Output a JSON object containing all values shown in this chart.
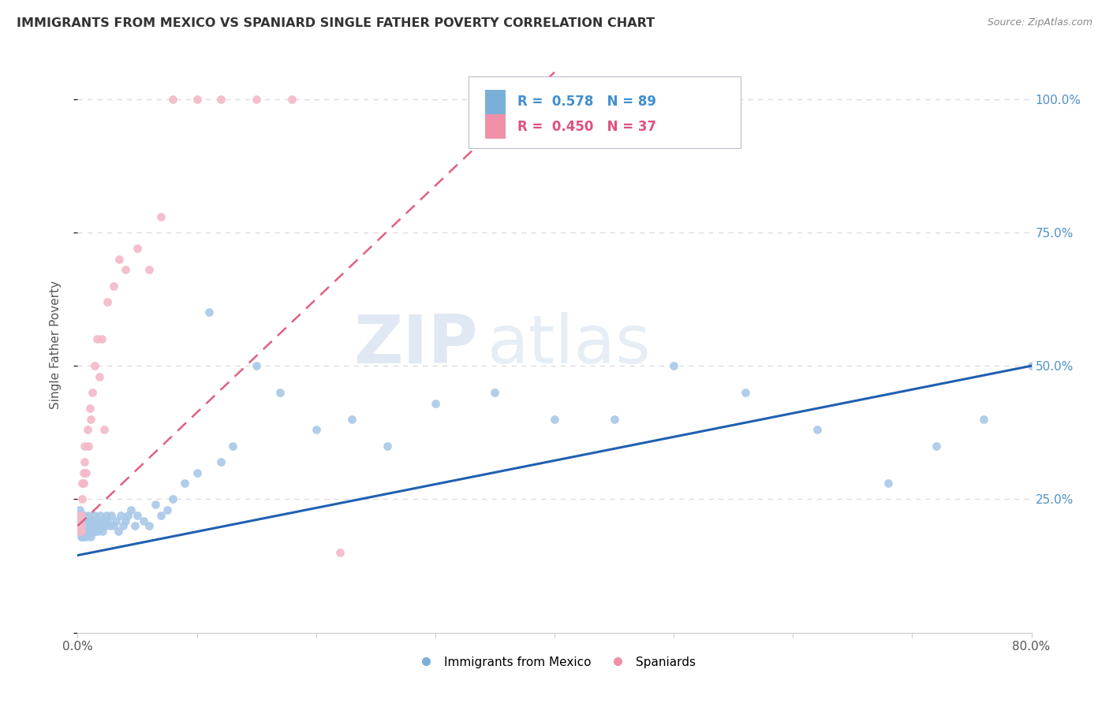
{
  "title": "IMMIGRANTS FROM MEXICO VS SPANIARD SINGLE FATHER POVERTY CORRELATION CHART",
  "source": "Source: ZipAtlas.com",
  "ylabel": "Single Father Poverty",
  "legend_blue_r": "0.578",
  "legend_blue_n": "89",
  "legend_pink_r": "0.450",
  "legend_pink_n": "37",
  "legend_label_blue": "Immigrants from Mexico",
  "legend_label_pink": "Spaniards",
  "watermark_zip": "ZIP",
  "watermark_atlas": "atlas",
  "blue_color": "#a8c8e8",
  "pink_color": "#f4b8c8",
  "blue_line_color": "#2060b0",
  "pink_line_color": "#e06080",
  "blue_legend_color": "#7ab0d8",
  "pink_legend_color": "#f090a8",
  "text_color_blue": "#4090d0",
  "text_color_pink": "#e05080",
  "right_tick_color": "#5090c8",
  "x_blue": [
    0.001,
    0.001,
    0.002,
    0.002,
    0.002,
    0.003,
    0.003,
    0.003,
    0.003,
    0.004,
    0.004,
    0.004,
    0.004,
    0.005,
    0.005,
    0.005,
    0.005,
    0.006,
    0.006,
    0.006,
    0.007,
    0.007,
    0.007,
    0.008,
    0.008,
    0.008,
    0.009,
    0.009,
    0.01,
    0.01,
    0.011,
    0.011,
    0.012,
    0.012,
    0.013,
    0.014,
    0.014,
    0.015,
    0.015,
    0.016,
    0.017,
    0.017,
    0.018,
    0.019,
    0.02,
    0.021,
    0.022,
    0.023,
    0.024,
    0.025,
    0.027,
    0.028,
    0.03,
    0.032,
    0.034,
    0.036,
    0.038,
    0.04,
    0.042,
    0.045,
    0.048,
    0.05,
    0.055,
    0.06,
    0.065,
    0.07,
    0.075,
    0.08,
    0.09,
    0.1,
    0.11,
    0.12,
    0.13,
    0.15,
    0.17,
    0.2,
    0.23,
    0.26,
    0.3,
    0.35,
    0.4,
    0.45,
    0.5,
    0.56,
    0.62,
    0.68,
    0.72,
    0.76,
    0.8
  ],
  "y_blue": [
    0.2,
    0.22,
    0.19,
    0.21,
    0.23,
    0.18,
    0.2,
    0.22,
    0.19,
    0.21,
    0.2,
    0.18,
    0.22,
    0.19,
    0.21,
    0.2,
    0.18,
    0.2,
    0.22,
    0.19,
    0.21,
    0.2,
    0.18,
    0.2,
    0.19,
    0.21,
    0.2,
    0.22,
    0.19,
    0.21,
    0.2,
    0.18,
    0.21,
    0.2,
    0.19,
    0.22,
    0.2,
    0.21,
    0.19,
    0.2,
    0.21,
    0.19,
    0.2,
    0.22,
    0.2,
    0.19,
    0.21,
    0.2,
    0.22,
    0.21,
    0.2,
    0.22,
    0.2,
    0.21,
    0.19,
    0.22,
    0.2,
    0.21,
    0.22,
    0.23,
    0.2,
    0.22,
    0.21,
    0.2,
    0.24,
    0.22,
    0.23,
    0.25,
    0.28,
    0.3,
    0.6,
    0.32,
    0.35,
    0.5,
    0.45,
    0.38,
    0.4,
    0.35,
    0.43,
    0.45,
    0.4,
    0.4,
    0.5,
    0.45,
    0.38,
    0.28,
    0.35,
    0.4,
    0.5
  ],
  "x_pink": [
    0.001,
    0.001,
    0.002,
    0.002,
    0.003,
    0.003,
    0.003,
    0.004,
    0.004,
    0.005,
    0.005,
    0.006,
    0.006,
    0.007,
    0.008,
    0.009,
    0.01,
    0.011,
    0.012,
    0.014,
    0.016,
    0.018,
    0.02,
    0.022,
    0.025,
    0.03,
    0.035,
    0.04,
    0.05,
    0.06,
    0.07,
    0.08,
    0.1,
    0.12,
    0.15,
    0.18,
    0.22
  ],
  "y_pink": [
    0.2,
    0.22,
    0.19,
    0.21,
    0.2,
    0.22,
    0.19,
    0.28,
    0.25,
    0.3,
    0.28,
    0.32,
    0.35,
    0.3,
    0.38,
    0.35,
    0.42,
    0.4,
    0.45,
    0.5,
    0.55,
    0.48,
    0.55,
    0.38,
    0.62,
    0.65,
    0.7,
    0.68,
    0.72,
    0.68,
    0.78,
    1.0,
    1.0,
    1.0,
    1.0,
    1.0,
    0.15
  ],
  "blue_line_x0": 0.0,
  "blue_line_y0": 0.145,
  "blue_line_x1": 0.8,
  "blue_line_y1": 0.5,
  "pink_line_x0": 0.0,
  "pink_line_y0": 0.2,
  "pink_line_x1": 0.4,
  "pink_line_y1": 1.05,
  "xlim": [
    0.0,
    0.8
  ],
  "ylim": [
    0.0,
    1.08
  ]
}
